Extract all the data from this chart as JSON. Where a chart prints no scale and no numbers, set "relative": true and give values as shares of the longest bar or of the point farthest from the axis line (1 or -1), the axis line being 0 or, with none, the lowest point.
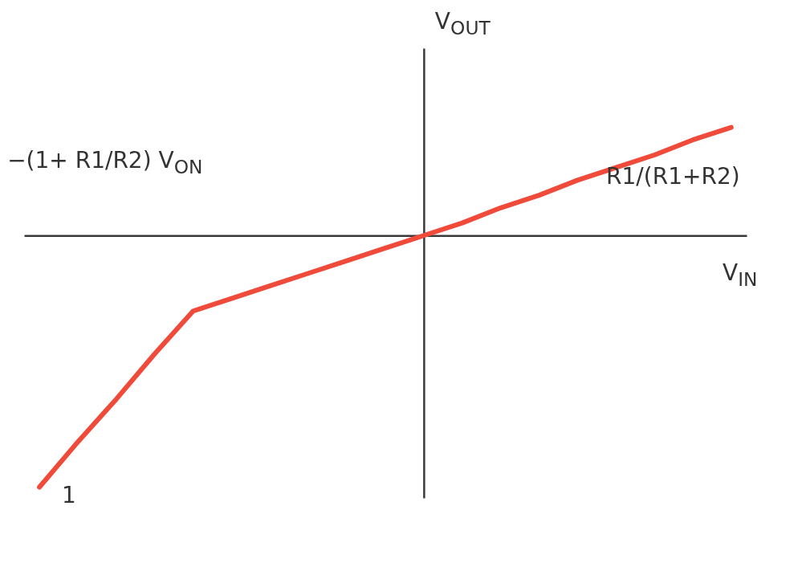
{
  "chart_data": {
    "type": "line",
    "relative": true,
    "xlabel": "V$_{IN}$",
    "ylabel": "V$_{OUT}$",
    "categories": [
      null,
      null,
      null,
      null,
      null,
      null,
      null,
      null,
      null,
      null,
      null,
      null,
      null,
      null,
      null,
      null,
      null,
      null,
      null
    ],
    "series": [
      {
        "color": "#f04a3a",
        "values": [
          -1,
          -0.82,
          -0.65,
          -0.47,
          -0.3,
          -0.25,
          -0.2,
          -0.15,
          -0.1,
          -0.05,
          0,
          0.05,
          0.11,
          0.16,
          0.22,
          0.27,
          0.32,
          0.38,
          0.43
        ]
      }
    ],
    "annotations": [
      "−(1+ R1/R2) V$_{ON}$",
      "R1/(R1+R2)",
      "1"
    ],
    "grid": false,
    "marker": "none",
    "line_style": "solid"
  }
}
